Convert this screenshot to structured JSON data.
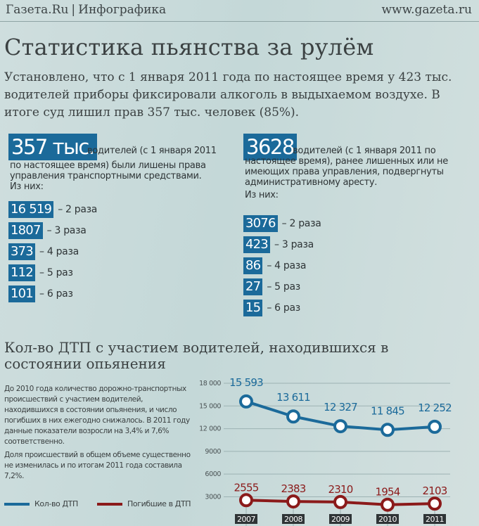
{
  "header": {
    "brand": "Газета.Ru",
    "section": "Инфографика",
    "site": "www.gazeta.ru"
  },
  "title": "Статистика пьянства за рулём",
  "intro": "Установлено, что с 1 января 2011 года по настоящее время у 423 тыс. водителей приборы фиксировали алкоголь в выдыхаемом воздухе. В итоге суд лишил прав 357 тыс. человек (85%).",
  "left": {
    "big": "357 тыс.",
    "desc_a": "водителей (с 1 января 2011",
    "desc_b": "по настоящее время) были лишены права",
    "desc_c": "управления транспортными средствами.",
    "of_them": "Из них:",
    "items": [
      {
        "value": "16 519",
        "label": "– 2 раза"
      },
      {
        "value": "1807",
        "label": "– 3 раза"
      },
      {
        "value": "373",
        "label": "– 4 раза"
      },
      {
        "value": "112",
        "label": "– 5 раз"
      },
      {
        "value": "101",
        "label": "– 6 раз"
      }
    ]
  },
  "right": {
    "big": "3628",
    "desc_a": "водителей (с 1 января 2011 по",
    "desc_b": "настоящее время), ранее лишенных или не",
    "desc_c": "имеющих права управления, подвергнуты",
    "desc_d": "административному аресту.",
    "of_them": "Из них:",
    "items": [
      {
        "value": "3076",
        "label": "– 2 раза"
      },
      {
        "value": "423",
        "label": "– 3 раза"
      },
      {
        "value": "86",
        "label": "– 4 раза"
      },
      {
        "value": "27",
        "label": "– 5 раз"
      },
      {
        "value": "15",
        "label": "– 6 раз"
      }
    ]
  },
  "section2_title": "Кол-во ДТП с участием водителей, находившихся в состоянии опьянения",
  "note1": "До 2010 года количество дорожно-транспортных происшествий с участием водителей, находившихся в состоянии опьянения, и число погибших в них ежегодно снижалось. В 2011 году данные показатели возросли на 3,4% и 7,6% соответственно.",
  "note2": "Доля происшествий в общем объеме существенно не изменилась и по итогам 2011 года составила 7,2%.",
  "colors": {
    "accent": "#1b6a9a",
    "series1": "#1b6a9a",
    "series2": "#8b1a1a"
  },
  "chart_data": {
    "type": "line",
    "x": [
      "2007",
      "2008",
      "2009",
      "2010",
      "2011"
    ],
    "series": [
      {
        "name": "Кол-во ДТП",
        "values": [
          15593,
          13611,
          12327,
          11845,
          12252
        ],
        "labels": [
          "15 593",
          "13 611",
          "12 327",
          "11 845",
          "12 252"
        ]
      },
      {
        "name": "Погибшие в ДТП",
        "values": [
          2555,
          2383,
          2310,
          1954,
          2103
        ],
        "labels": [
          "2555",
          "2383",
          "2310",
          "1954",
          "2103"
        ]
      }
    ],
    "yticks": [
      3000,
      6000,
      9000,
      12000,
      15000,
      18000
    ],
    "ytick_labels": [
      "3000",
      "6000",
      "9000",
      "12 000",
      "15 000",
      "18 000"
    ],
    "ylim": [
      1000,
      18000
    ],
    "grid": true,
    "legend": "bottom-left"
  }
}
